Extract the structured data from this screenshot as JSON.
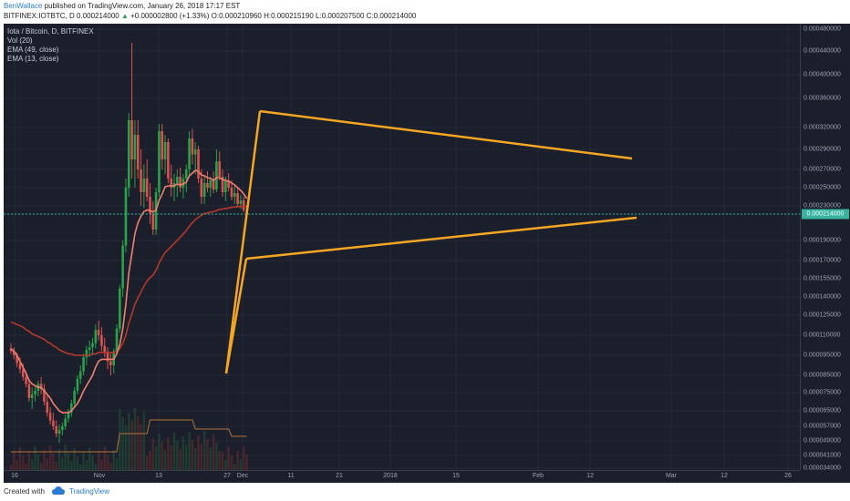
{
  "header": {
    "author": "BenWallace",
    "published_text": "published on TradingView.com, January 26, 2018 17:17 EST",
    "symbol_line": "BITFINEX:IOTBTC, D",
    "price": "0.000214000",
    "change": "+0.000002800 (+1.33%)",
    "open": "O:0.000210960",
    "high": "H:0.000215190",
    "low": "L:0.000207500",
    "close": "C:0.000214000"
  },
  "legend": {
    "title": "Iota / Bitcoin, D, BITFINEX",
    "vol": "Vol (20)",
    "ema49": "EMA (49, close)",
    "ema13": "EMA (13, close)"
  },
  "footer": {
    "created_with": "Created with",
    "brand": "TradingView"
  },
  "colors": {
    "background": "#1b1e2b",
    "bull_candle": "#2aa14a",
    "bear_candle": "#d9534f",
    "ema13": "#f08070",
    "ema49": "#b5382a",
    "trendlines": "#f5a623",
    "current_price": "#36b4a0"
  },
  "chart_data": {
    "type": "candlestick",
    "current_price": 0.000214,
    "y_ticks": [
      "0.000480000",
      "0.000440000",
      "0.000400000",
      "0.000360000",
      "0.000320000",
      "0.000290000",
      "0.000270000",
      "0.000250000",
      "0.000230000",
      "0.000214000",
      "0.000190000",
      "0.000170000",
      "0.000155000",
      "0.000140000",
      "0.000125000",
      "0.000110000",
      "0.000095000",
      "0.000085000",
      "0.000075000",
      "0.000065000",
      "0.000057000",
      "0.000049000",
      "0.000041000",
      "0.000034000"
    ],
    "x_ticks": [
      "16",
      "Nov",
      "13",
      "27",
      "Dec",
      "11",
      "21",
      "2018",
      "15",
      "Feb",
      "12",
      "Mar",
      "12",
      "26"
    ],
    "x_start": "2017-10-10",
    "last_bar": "2018-01-26",
    "candles_approx": [
      [
        0.0001,
        0.000104,
        9.6e-05,
        9.8e-05
      ],
      [
        9.8e-05,
        0.000101,
        9.3e-05,
        9.5e-05
      ],
      [
        9.5e-05,
        9.7e-05,
        8.9e-05,
        9.1e-05
      ],
      [
        9.1e-05,
        9.4e-05,
        8.6e-05,
        8.8e-05
      ],
      [
        8.8e-05,
        9.1e-05,
        8.2e-05,
        8.4e-05
      ],
      [
        8.4e-05,
        8.7e-05,
        7.8e-05,
        8e-05
      ],
      [
        8e-05,
        8.3e-05,
        7e-05,
        7.2e-05
      ],
      [
        7.2e-05,
        7.8e-05,
        6.6e-05,
        7.4e-05
      ],
      [
        7.4e-05,
        7.9e-05,
        7e-05,
        7.6e-05
      ],
      [
        7.6e-05,
        8.2e-05,
        7.3e-05,
        8e-05
      ],
      [
        8e-05,
        8.4e-05,
        7.4e-05,
        7.7e-05
      ],
      [
        7.7e-05,
        8e-05,
        6.8e-05,
        7e-05
      ],
      [
        7e-05,
        7.4e-05,
        6.2e-05,
        6.4e-05
      ],
      [
        6.4e-05,
        6.7e-05,
        5.8e-05,
        6e-05
      ],
      [
        6e-05,
        6.4e-05,
        5.5e-05,
        5.7e-05
      ],
      [
        5.7e-05,
        6e-05,
        5.1e-05,
        5.3e-05
      ],
      [
        5.3e-05,
        5.8e-05,
        4.8e-05,
        5.5e-05
      ],
      [
        5.5e-05,
        5.9e-05,
        5.2e-05,
        5.7e-05
      ],
      [
        5.7e-05,
        6.3e-05,
        5.5e-05,
        6.1e-05
      ],
      [
        6.1e-05,
        6.6e-05,
        5.9e-05,
        6.4e-05
      ],
      [
        6.4e-05,
        7.1e-05,
        6.2e-05,
        6.9e-05
      ],
      [
        6.9e-05,
        7.8e-05,
        6.7e-05,
        7.6e-05
      ],
      [
        7.6e-05,
        8.5e-05,
        7.4e-05,
        8.3e-05
      ],
      [
        8.3e-05,
        9e-05,
        8e-05,
        8.7e-05
      ],
      [
        8.7e-05,
        9.6e-05,
        8.5e-05,
        9.4e-05
      ],
      [
        9.4e-05,
        0.000102,
        9e-05,
        9.9e-05
      ],
      [
        9.9e-05,
        0.000106,
        9.4e-05,
        0.000101
      ],
      [
        0.000101,
        0.000108,
        9.5e-05,
        0.000104
      ],
      [
        0.000104,
        0.000118,
        0.0001,
        0.000114
      ],
      [
        0.000114,
        0.000121,
        0.000106,
        0.00011
      ],
      [
        0.00011,
        0.000116,
        9.8e-05,
        0.000102
      ],
      [
        0.000102,
        0.000108,
        9.4e-05,
        9.7e-05
      ],
      [
        9.7e-05,
        0.000101,
        8.8e-05,
        9.2e-05
      ],
      [
        9.2e-05,
        9.6e-05,
        8.5e-05,
        9e-05
      ],
      [
        9e-05,
        0.0001,
        8.6e-05,
        9.8e-05
      ],
      [
        9.8e-05,
        0.000118,
        9.5e-05,
        0.000115
      ],
      [
        0.000115,
        0.00015,
        0.000112,
        0.000147
      ],
      [
        0.000147,
        0.00019,
        0.00014,
        0.000185
      ],
      [
        0.000185,
        0.00026,
        0.000178,
        0.00025
      ],
      [
        0.00025,
        0.00034,
        0.00024,
        0.00033
      ],
      [
        0.00033,
        0.000455,
        0.00026,
        0.00028
      ],
      [
        0.00028,
        0.00033,
        0.00025,
        0.00031
      ],
      [
        0.00031,
        0.00033,
        0.00026,
        0.00027
      ],
      [
        0.00027,
        0.00029,
        0.00023,
        0.000245
      ],
      [
        0.000245,
        0.000275,
        0.000225,
        0.00026
      ],
      [
        0.00026,
        0.00028,
        0.000235,
        0.00024
      ],
      [
        0.00024,
        0.000255,
        0.000205,
        0.000215
      ],
      [
        0.000215,
        0.000235,
        0.000195,
        0.0002
      ],
      [
        0.0002,
        0.00025,
        0.000195,
        0.000245
      ],
      [
        0.000245,
        0.000325,
        0.00024,
        0.000315
      ],
      [
        0.000315,
        0.000325,
        0.00027,
        0.00028
      ],
      [
        0.00028,
        0.00031,
        0.000265,
        0.0003
      ],
      [
        0.0003,
        0.000305,
        0.000255,
        0.00026
      ],
      [
        0.00026,
        0.000275,
        0.00024,
        0.00025
      ],
      [
        0.00025,
        0.000265,
        0.000235,
        0.000255
      ],
      [
        0.000255,
        0.00027,
        0.00024,
        0.000262
      ],
      [
        0.000262,
        0.000272,
        0.000245,
        0.00025
      ],
      [
        0.00025,
        0.000265,
        0.000238,
        0.00026
      ],
      [
        0.00026,
        0.000275,
        0.000245,
        0.00027
      ],
      [
        0.00027,
        0.000315,
        0.000262,
        0.000305
      ],
      [
        0.000305,
        0.000318,
        0.000275,
        0.000285
      ],
      [
        0.000285,
        0.0003,
        0.000265,
        0.00029
      ],
      [
        0.00029,
        0.000295,
        0.000255,
        0.00026
      ],
      [
        0.00026,
        0.00027,
        0.000232,
        0.00024
      ],
      [
        0.00024,
        0.000262,
        0.000232,
        0.000255
      ],
      [
        0.000255,
        0.000268,
        0.000245,
        0.00025
      ],
      [
        0.00025,
        0.000262,
        0.00024,
        0.000258
      ],
      [
        0.000258,
        0.000268,
        0.000244,
        0.000248
      ],
      [
        0.000248,
        0.00029,
        0.000245,
        0.000278
      ],
      [
        0.000278,
        0.000288,
        0.000258,
        0.000262
      ],
      [
        0.000262,
        0.00027,
        0.00024,
        0.000245
      ],
      [
        0.000245,
        0.000262,
        0.000235,
        0.000258
      ],
      [
        0.000258,
        0.000266,
        0.000246,
        0.00025
      ],
      [
        0.00025,
        0.000258,
        0.000236,
        0.00024
      ],
      [
        0.00024,
        0.000252,
        0.000232,
        0.000244
      ],
      [
        0.000244,
        0.00025,
        0.000228,
        0.000232
      ],
      [
        0.000232,
        0.000242,
        0.000224,
        0.000236
      ],
      [
        0.000236,
        0.00024,
        0.000218,
        0.000222
      ],
      [
        0.000222,
        0.00023,
        0.000211,
        0.000214
      ]
    ],
    "ema13_approx": [
      0.0001,
      9.8e-05,
      9.5e-05,
      9.2e-05,
      8.9e-05,
      8.6e-05,
      8.2e-05,
      8e-05,
      7.9e-05,
      7.8e-05,
      7.8e-05,
      7.6e-05,
      7.4e-05,
      7.2e-05,
      6.9e-05,
      6.7e-05,
      6.5e-05,
      6.4e-05,
      6.4e-05,
      6.4e-05,
      6.5e-05,
      6.7e-05,
      6.9e-05,
      7.2e-05,
      7.6e-05,
      7.9e-05,
      8.2e-05,
      8.5e-05,
      8.9e-05,
      9.2e-05,
      9.3e-05,
      9.3e-05,
      9.3e-05,
      9.3e-05,
      9.3e-05,
      9.6e-05,
      0.000103,
      0.000115,
      0.000134,
      0.00016,
      0.000177,
      0.000196,
      0.000206,
      0.000212,
      0.000219,
      0.000222,
      0.000221,
      0.000218,
      0.000222,
      0.000236,
      0.000243,
      0.000251,
      0.000252,
      0.000252,
      0.000252,
      0.000254,
      0.000253,
      0.000254,
      0.000256,
      0.000263,
      0.000266,
      0.000269,
      0.000268,
      0.000264,
      0.000263,
      0.000261,
      0.00026,
      0.000258,
      0.000261,
      0.000261,
      0.000259,
      0.000258,
      0.000257,
      0.000255,
      0.000253,
      0.00025,
      0.000247,
      0.000243,
      0.000238
    ],
    "ema49_approx": [
      0.00012,
      0.000119,
      0.000118,
      0.000117,
      0.000116,
      0.000114,
      0.000113,
      0.000111,
      0.00011,
      0.000109,
      0.000108,
      0.000107,
      0.000105,
      0.000104,
      0.000102,
      0.000101,
      9.9e-05,
      9.8e-05,
      9.7e-05,
      9.6e-05,
      9.6e-05,
      9.5e-05,
      9.5e-05,
      9.5e-05,
      9.5e-05,
      9.5e-05,
      9.5e-05,
      9.6e-05,
      9.6e-05,
      9.7e-05,
      9.7e-05,
      9.7e-05,
      9.7e-05,
      9.7e-05,
      9.7e-05,
      9.8e-05,
      0.0001,
      0.000104,
      0.00011,
      0.000119,
      0.000126,
      0.000134,
      0.000139,
      0.000144,
      0.000149,
      0.000153,
      0.000156,
      0.000158,
      0.000162,
      0.000168,
      0.000173,
      0.000178,
      0.000181,
      0.000184,
      0.000187,
      0.00019,
      0.000193,
      0.000196,
      0.000199,
      0.000203,
      0.000206,
      0.000209,
      0.000211,
      0.000213,
      0.000215,
      0.000216,
      0.000218,
      0.000219,
      0.000221,
      0.000223,
      0.000224,
      0.000225,
      0.000226,
      0.000227,
      0.000228,
      0.000228,
      0.000229,
      0.000229,
      0.000229
    ]
  }
}
